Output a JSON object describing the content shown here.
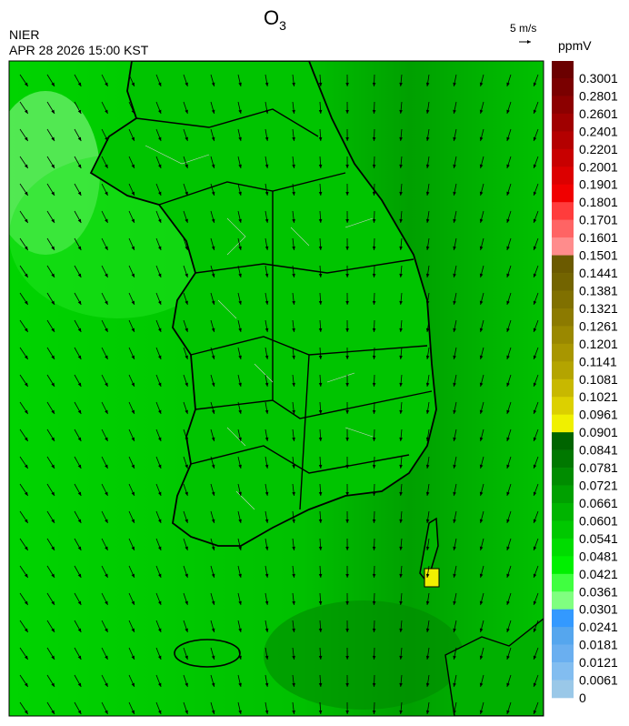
{
  "title": "O",
  "title_sub": "3",
  "agency": "NIER",
  "datetime": "APR 28 2026 15:00 KST",
  "wind_scale": "5 m/s",
  "colorbar": {
    "unit": "ppmV",
    "labels": [
      "0.3001",
      "0.2801",
      "0.2601",
      "0.2401",
      "0.2201",
      "0.2001",
      "0.1901",
      "0.1801",
      "0.1701",
      "0.1601",
      "0.1501",
      "0.1441",
      "0.1381",
      "0.1321",
      "0.1261",
      "0.1201",
      "0.1141",
      "0.1081",
      "0.1021",
      "0.0961",
      "0.0901",
      "0.0841",
      "0.0781",
      "0.0721",
      "0.0661",
      "0.0601",
      "0.0541",
      "0.0481",
      "0.0421",
      "0.0361",
      "0.0301",
      "0.0241",
      "0.0181",
      "0.0121",
      "0.0061",
      "0"
    ]
  }
}
